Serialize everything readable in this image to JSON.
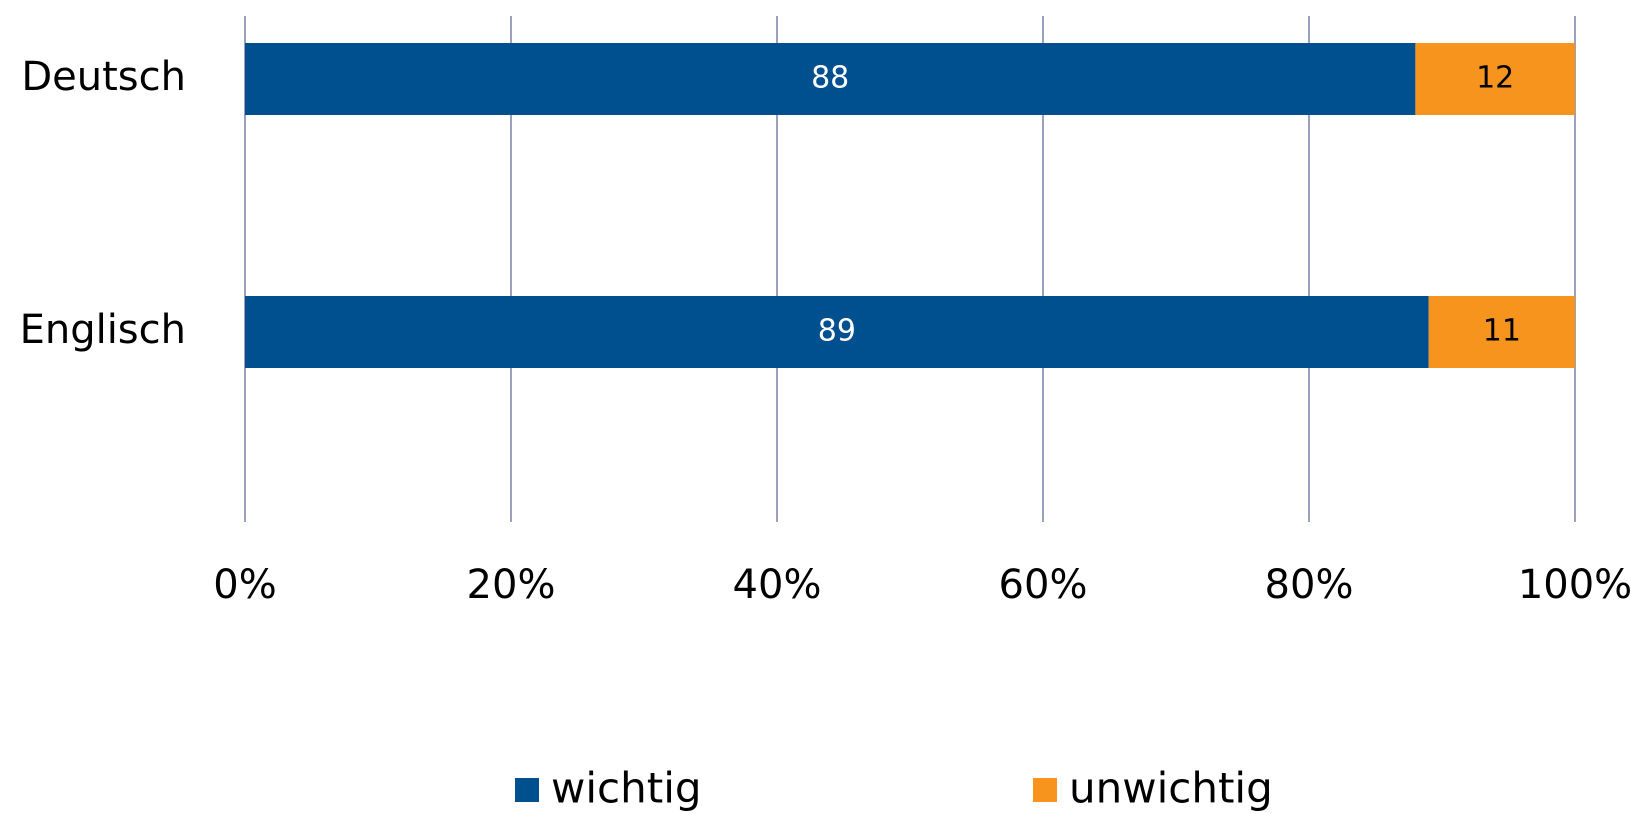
{
  "chart_data": {
    "type": "bar",
    "orientation": "horizontal",
    "stacked": true,
    "categories": [
      "Deutsch",
      "Englisch"
    ],
    "series": [
      {
        "name": "wichtig",
        "color": "#004f8f",
        "values": [
          88,
          89
        ]
      },
      {
        "name": "unwichtig",
        "color": "#f7941d",
        "values": [
          12,
          11
        ]
      }
    ],
    "xlim": [
      0,
      100
    ],
    "xticks": [
      {
        "value": 0,
        "label": "0%"
      },
      {
        "value": 20,
        "label": "20%"
      },
      {
        "value": 40,
        "label": "40%"
      },
      {
        "value": 60,
        "label": "60%"
      },
      {
        "value": 80,
        "label": "80%"
      },
      {
        "value": 100,
        "label": "100%"
      }
    ],
    "grid": true,
    "legend": "bottom"
  }
}
